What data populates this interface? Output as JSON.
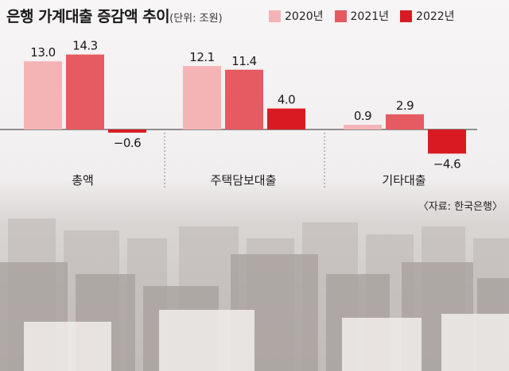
{
  "title": "은행 가계대출 증감액 추이",
  "unit_note": "(단위: 조원)",
  "source": "〈자료: 한국은행〉",
  "colors": {
    "2020년": "#f4b4b6",
    "2021년": "#e65a61",
    "2022년": "#d81b22"
  },
  "chart_data": {
    "type": "bar",
    "title": "은행 가계대출 증감액 추이",
    "unit": "조원",
    "categories": [
      "총액",
      "주택담보대출",
      "기타대출"
    ],
    "series": [
      {
        "name": "2020년",
        "values": [
          13.0,
          12.1,
          0.9
        ]
      },
      {
        "name": "2021년",
        "values": [
          14.3,
          11.4,
          2.9
        ]
      },
      {
        "name": "2022년",
        "values": [
          -0.6,
          4.0,
          -4.6
        ]
      }
    ],
    "value_labels": [
      [
        "13.0",
        "12.1",
        "0.9"
      ],
      [
        "14.3",
        "11.4",
        "2.9"
      ],
      [
        "−0.6",
        "4.0",
        "−4.6"
      ]
    ],
    "ylim": [
      -4.6,
      14.3
    ],
    "legend": "top-right",
    "grid": false
  }
}
